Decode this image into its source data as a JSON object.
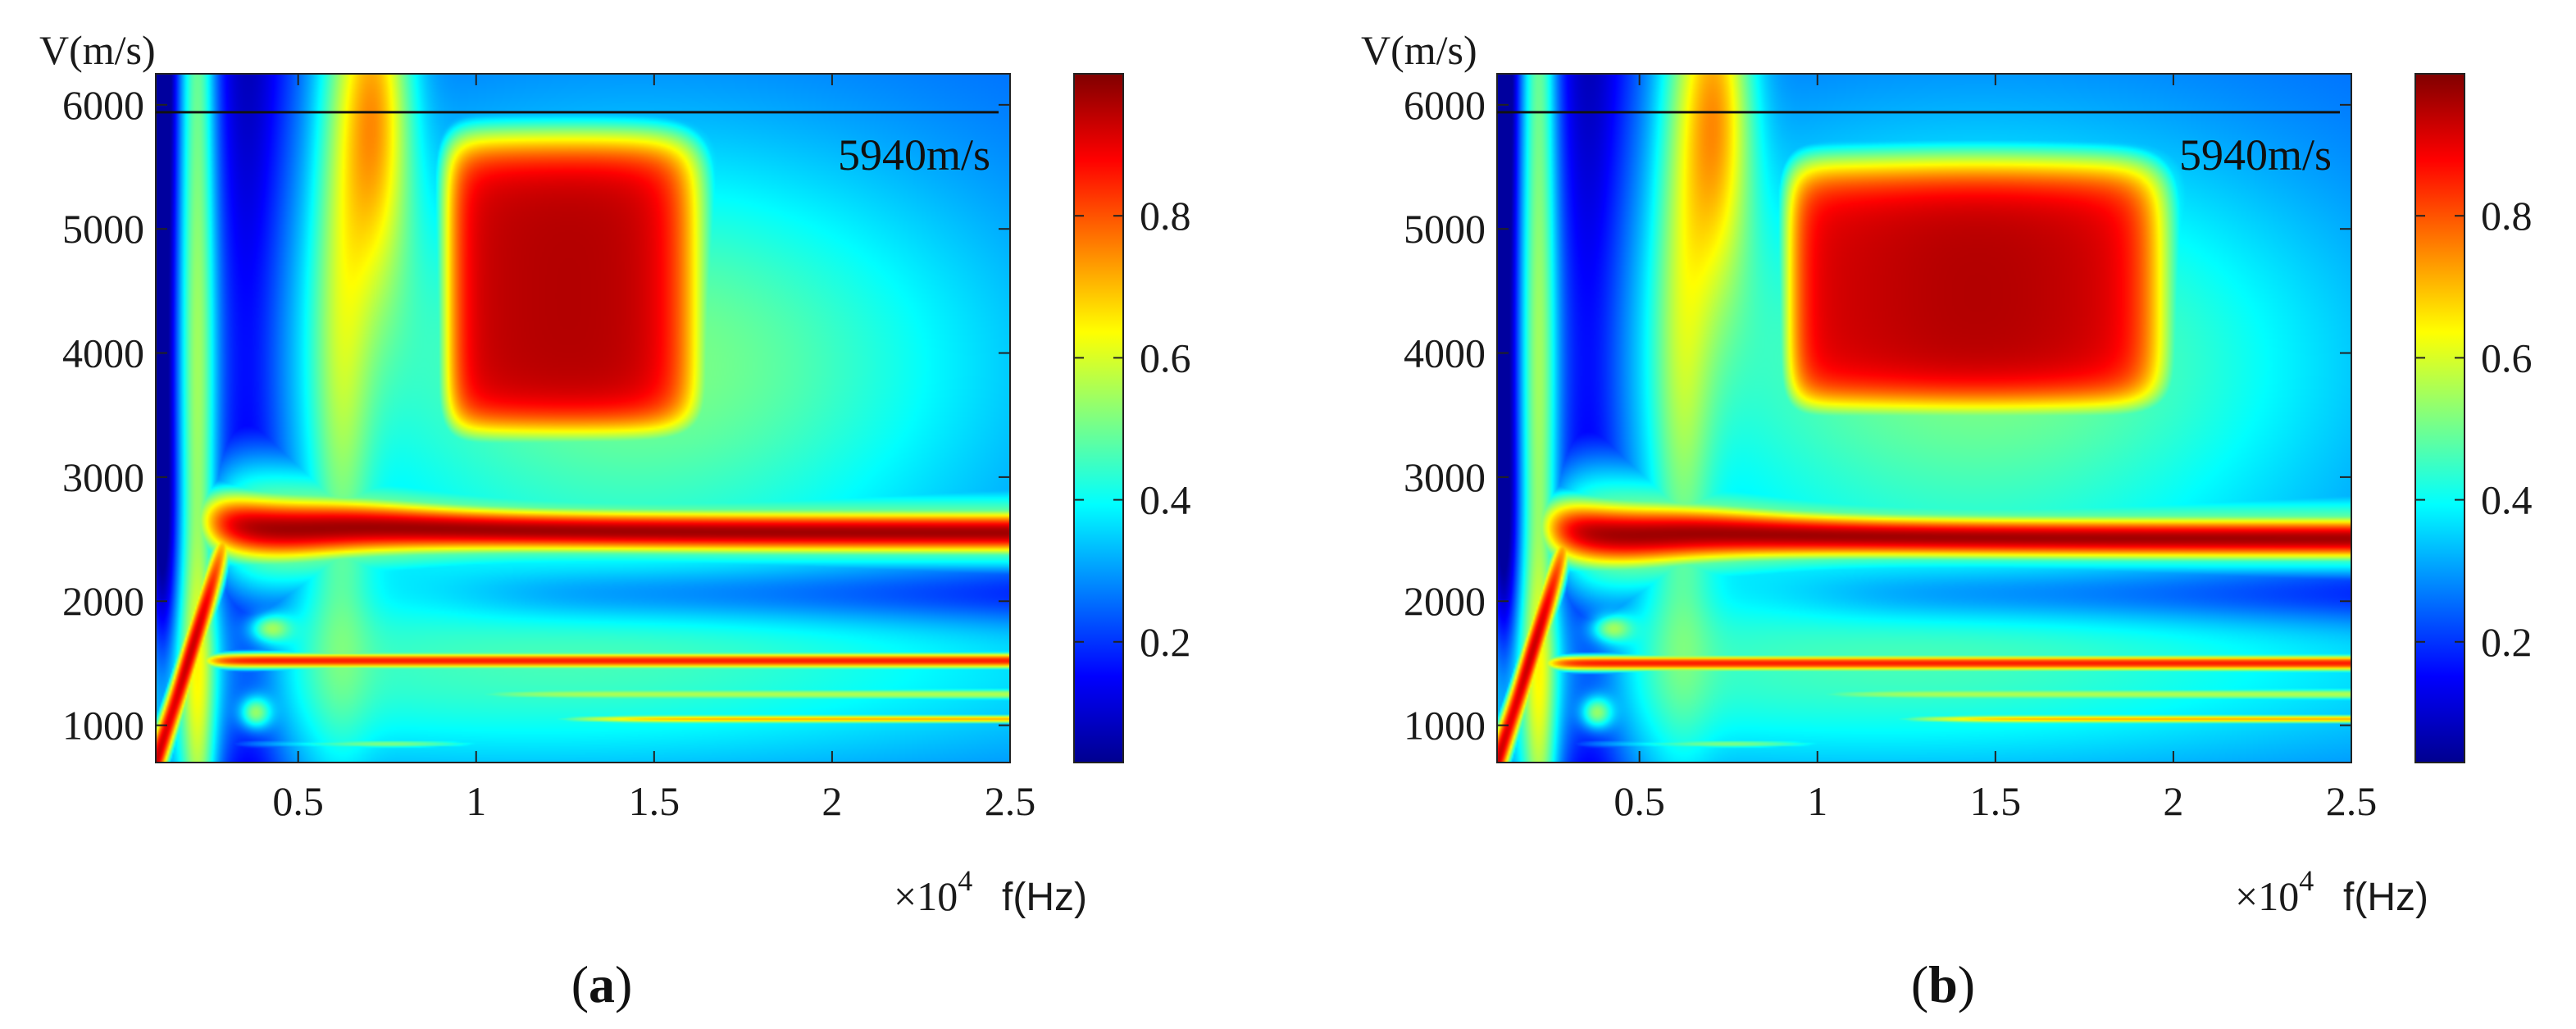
{
  "chart_data": [
    {
      "type": "heatmap",
      "panel_label": "a",
      "ylabel": "V(m/s)",
      "xlabel": "f(Hz)",
      "x_multiplier": "×10",
      "x_multiplier_exp": "4",
      "xlim": [
        0.1,
        2.5
      ],
      "ylim": [
        700,
        6250
      ],
      "xticks": [
        0.5,
        1,
        1.5,
        2,
        2.5
      ],
      "xtick_labels": [
        "0.5",
        "1",
        "1.5",
        "2",
        "2.5"
      ],
      "yticks": [
        1000,
        2000,
        3000,
        4000,
        5000,
        6000
      ],
      "ytick_labels": [
        "1000",
        "2000",
        "3000",
        "4000",
        "5000",
        "6000"
      ],
      "reference_line": {
        "value": 5940,
        "label": "5940m/s"
      },
      "colorbar": {
        "range": [
          0.03,
          1.0
        ],
        "ticks": [
          0.2,
          0.4,
          0.6,
          0.8
        ],
        "tick_labels": [
          "0.2",
          "0.4",
          "0.6",
          "0.8"
        ]
      },
      "features": {
        "high_region": {
          "f_range": [
            0.9,
            1.65
          ],
          "v_range": [
            3300,
            5800
          ],
          "value": 0.9
        },
        "main_band": {
          "v_center": 2550,
          "value": 0.97
        },
        "lower_band": {
          "v_center": 1520,
          "value": 0.85
        }
      }
    },
    {
      "type": "heatmap",
      "panel_label": "b",
      "ylabel": "V(m/s)",
      "xlabel": "f(Hz)",
      "x_multiplier": "×10",
      "x_multiplier_exp": "4",
      "xlim": [
        0.1,
        2.5
      ],
      "ylim": [
        700,
        6250
      ],
      "xticks": [
        0.5,
        1,
        1.5,
        2,
        2.5
      ],
      "xtick_labels": [
        "0.5",
        "1",
        "1.5",
        "2",
        "2.5"
      ],
      "yticks": [
        1000,
        2000,
        3000,
        4000,
        5000,
        6000
      ],
      "ytick_labels": [
        "1000",
        "2000",
        "3000",
        "4000",
        "5000",
        "6000"
      ],
      "reference_line": {
        "value": 5940,
        "label": "5940m/s"
      },
      "colorbar": {
        "range": [
          0.03,
          1.0
        ],
        "ticks": [
          0.2,
          0.4,
          0.6,
          0.8
        ],
        "tick_labels": [
          "0.2",
          "0.4",
          "0.6",
          "0.8"
        ]
      },
      "features": {
        "high_region": {
          "f_range": [
            0.9,
            2.0
          ],
          "v_range": [
            3500,
            5600
          ],
          "value": 0.9
        },
        "main_band": {
          "v_center": 2500,
          "value": 0.97
        },
        "lower_band": {
          "v_center": 1500,
          "value": 0.85
        }
      }
    }
  ]
}
